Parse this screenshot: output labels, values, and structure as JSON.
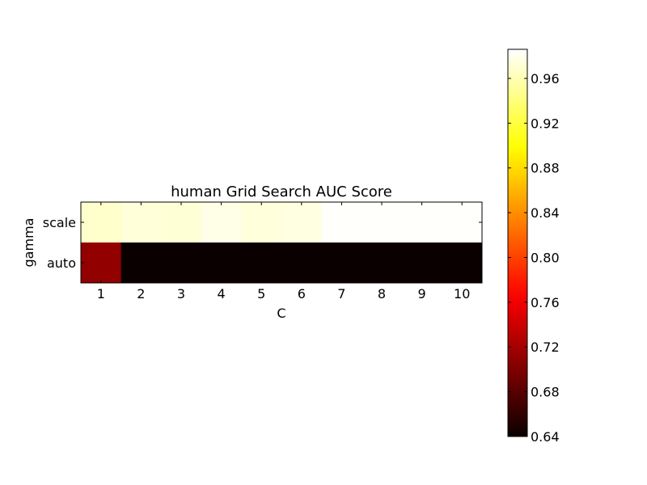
{
  "chart_data": {
    "type": "heatmap",
    "title": "human Grid Search AUC Score",
    "xlabel": "C",
    "ylabel": "gamma",
    "x_categories": [
      "1",
      "2",
      "3",
      "4",
      "5",
      "6",
      "7",
      "8",
      "9",
      "10"
    ],
    "y_categories": [
      "scale",
      "auto"
    ],
    "values": [
      [
        0.968,
        0.973,
        0.972,
        0.978,
        0.974,
        0.976,
        0.985,
        0.985,
        0.985,
        0.985
      ],
      [
        0.71,
        0.64,
        0.64,
        0.64,
        0.64,
        0.64,
        0.64,
        0.64,
        0.64,
        0.64
      ]
    ],
    "colormap": "hot",
    "colorbar": {
      "range": [
        0.64,
        0.986
      ],
      "ticks": [
        "0.64",
        "0.68",
        "0.72",
        "0.76",
        "0.80",
        "0.84",
        "0.88",
        "0.92",
        "0.96"
      ]
    }
  }
}
